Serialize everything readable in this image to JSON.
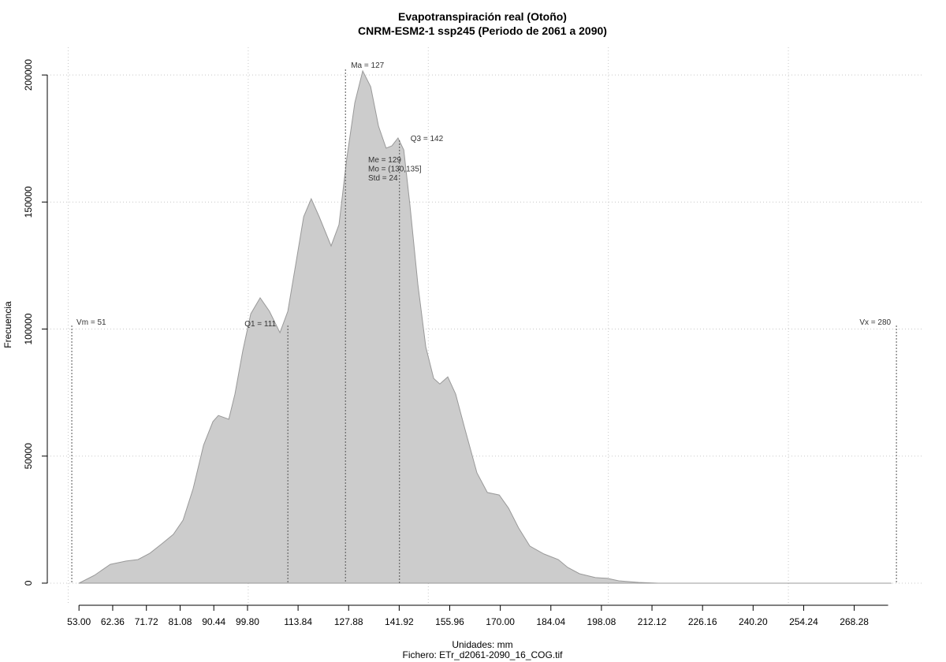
{
  "chart_data": {
    "type": "area",
    "title": "Evapotranspiración real (Otoño)",
    "subtitle": "CNRM-ESM2-1 ssp245 (Periodo de 2061 a 2090)",
    "xlabel": "Unidades: mm",
    "caption": "Fichero: ETr_d2061-2090_16_COG.tif",
    "ylabel": "Frecuencia",
    "color": "#cccccc",
    "line_color": "#999999",
    "x": [
      53,
      57.3,
      61.7,
      66.1,
      69.4,
      72.7,
      76.0,
      79.2,
      81.9,
      84.7,
      87.6,
      90.2,
      91.7,
      94.6,
      96.3,
      98.5,
      100.7,
      103.3,
      105.9,
      108.8,
      111.0,
      113.2,
      115.4,
      117.5,
      119.7,
      123.0,
      125.2,
      127.4,
      129.6,
      131.8,
      134.0,
      136.2,
      138.3,
      139.9,
      141.6,
      143.2,
      144.9,
      147.1,
      149.3,
      151.5,
      153.2,
      155.4,
      157.6,
      160.2,
      163.5,
      166.4,
      169.7,
      172.3,
      175.1,
      178.2,
      182.1,
      186.1,
      188.7,
      192.0,
      196.4,
      199.6,
      202.9,
      208.4,
      213.9,
      230,
      250,
      278.5
    ],
    "values": [
      0,
      3100,
      7400,
      8700,
      9300,
      11800,
      15500,
      19200,
      24800,
      37200,
      54300,
      63600,
      66000,
      64500,
      74400,
      91500,
      106000,
      112300,
      107000,
      98600,
      107000,
      125600,
      144200,
      151300,
      144200,
      132700,
      141100,
      167400,
      189100,
      201600,
      195400,
      179800,
      171200,
      172100,
      175200,
      170500,
      148800,
      117800,
      93000,
      80600,
      78400,
      81200,
      74400,
      60500,
      43400,
      35700,
      34700,
      29500,
      21700,
      14600,
      11500,
      9300,
      6200,
      3700,
      2200,
      1900,
      900,
      300,
      0,
      0,
      0,
      0
    ],
    "xlim": [
      44.2,
      287.2
    ],
    "ylim": [
      -8700,
      210900
    ],
    "xticks": [
      {
        "value": 53,
        "label": "53.00"
      },
      62.36,
      71.72,
      81.08,
      90.44,
      {
        "value": 99.8,
        "label": "99.80"
      },
      113.84,
      127.88,
      141.92,
      155.96,
      {
        "value": 170,
        "label": "170.00"
      },
      184.04,
      198.08,
      212.12,
      226.16,
      {
        "value": 240.2,
        "label": "240.20"
      },
      254.24,
      268.28
    ],
    "yticks": [
      0,
      50000,
      100000,
      150000,
      200000
    ],
    "x_grid": [
      50,
      100,
      150,
      200,
      250
    ],
    "grid": true,
    "markers": [
      {
        "label": "Vm = 51",
        "value": 51
      },
      {
        "label": "Q1 = 111",
        "value": 111
      },
      {
        "label": "Ma = 127",
        "value": 127
      },
      {
        "label": "Q3 = 142",
        "value": 142
      },
      {
        "label": "Vx = 280",
        "value": 280
      }
    ],
    "stats_text": [
      "Me = 129",
      "Mo = (130,135]",
      "Std = 24"
    ]
  }
}
